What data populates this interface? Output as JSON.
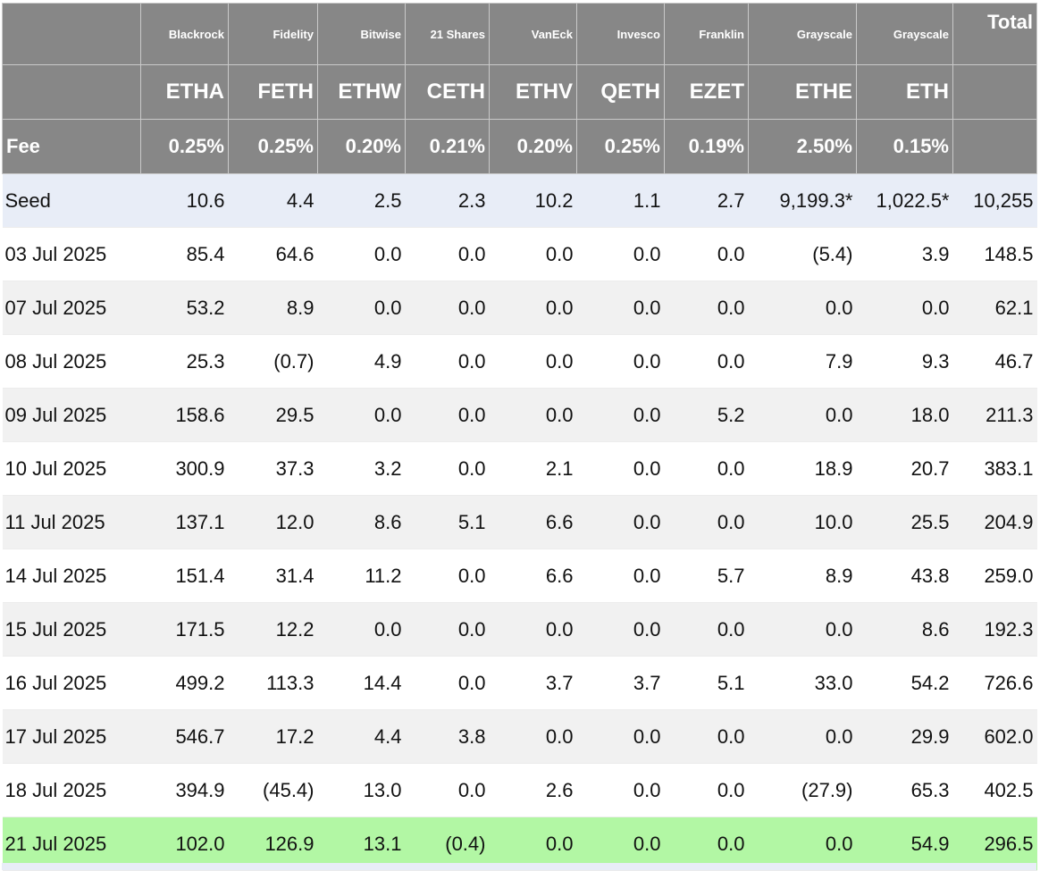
{
  "header": {
    "issuers": [
      "Blackrock",
      "Fidelity",
      "Bitwise",
      "21 Shares",
      "VanEck",
      "Invesco",
      "Franklin",
      "Grayscale",
      "Grayscale"
    ],
    "total_label": "Total",
    "tickers": [
      "ETHA",
      "FETH",
      "ETHW",
      "CETH",
      "ETHV",
      "QETH",
      "EZET",
      "ETHE",
      "ETH"
    ],
    "fee_label": "Fee",
    "fees": [
      "0.25%",
      "0.25%",
      "0.20%",
      "0.21%",
      "0.20%",
      "0.25%",
      "0.19%",
      "2.50%",
      "0.15%"
    ]
  },
  "rows": [
    {
      "label": "Seed",
      "values": [
        "10.6",
        "4.4",
        "2.5",
        "2.3",
        "10.2",
        "1.1",
        "2.7",
        "9,199.3*",
        "1,022.5*"
      ],
      "total": "10,255"
    },
    {
      "label": "03 Jul 2025",
      "values": [
        "85.4",
        "64.6",
        "0.0",
        "0.0",
        "0.0",
        "0.0",
        "0.0",
        "(5.4)",
        "3.9"
      ],
      "total": "148.5"
    },
    {
      "label": "07 Jul 2025",
      "values": [
        "53.2",
        "8.9",
        "0.0",
        "0.0",
        "0.0",
        "0.0",
        "0.0",
        "0.0",
        "0.0"
      ],
      "total": "62.1"
    },
    {
      "label": "08 Jul 2025",
      "values": [
        "25.3",
        "(0.7)",
        "4.9",
        "0.0",
        "0.0",
        "0.0",
        "0.0",
        "7.9",
        "9.3"
      ],
      "total": "46.7"
    },
    {
      "label": "09 Jul 2025",
      "values": [
        "158.6",
        "29.5",
        "0.0",
        "0.0",
        "0.0",
        "0.0",
        "5.2",
        "0.0",
        "18.0"
      ],
      "total": "211.3"
    },
    {
      "label": "10 Jul 2025",
      "values": [
        "300.9",
        "37.3",
        "3.2",
        "0.0",
        "2.1",
        "0.0",
        "0.0",
        "18.9",
        "20.7"
      ],
      "total": "383.1"
    },
    {
      "label": "11 Jul 2025",
      "values": [
        "137.1",
        "12.0",
        "8.6",
        "5.1",
        "6.6",
        "0.0",
        "0.0",
        "10.0",
        "25.5"
      ],
      "total": "204.9"
    },
    {
      "label": "14 Jul 2025",
      "values": [
        "151.4",
        "31.4",
        "11.2",
        "0.0",
        "6.6",
        "0.0",
        "5.7",
        "8.9",
        "43.8"
      ],
      "total": "259.0"
    },
    {
      "label": "15 Jul 2025",
      "values": [
        "171.5",
        "12.2",
        "0.0",
        "0.0",
        "0.0",
        "0.0",
        "0.0",
        "0.0",
        "8.6"
      ],
      "total": "192.3"
    },
    {
      "label": "16 Jul 2025",
      "values": [
        "499.2",
        "113.3",
        "14.4",
        "0.0",
        "3.7",
        "3.7",
        "5.1",
        "33.0",
        "54.2"
      ],
      "total": "726.6"
    },
    {
      "label": "17 Jul 2025",
      "values": [
        "546.7",
        "17.2",
        "4.4",
        "3.8",
        "0.0",
        "0.0",
        "0.0",
        "0.0",
        "29.9"
      ],
      "total": "602.0"
    },
    {
      "label": "18 Jul 2025",
      "values": [
        "394.9",
        "(45.4)",
        "13.0",
        "0.0",
        "2.6",
        "0.0",
        "0.0",
        "(27.9)",
        "65.3"
      ],
      "total": "402.5"
    },
    {
      "label": "21 Jul 2025",
      "values": [
        "102.0",
        "126.9",
        "13.1",
        "(0.4)",
        "0.0",
        "0.0",
        "0.0",
        "0.0",
        "54.9"
      ],
      "total": "296.5"
    }
  ],
  "colors": {
    "header_bg": "#878787",
    "seed_row_bg": "#e8edf7",
    "stripe_bg": "#f1f1f1",
    "highlight_row_bg": "#b2f7a4",
    "negative_text": "#e23b2e"
  }
}
